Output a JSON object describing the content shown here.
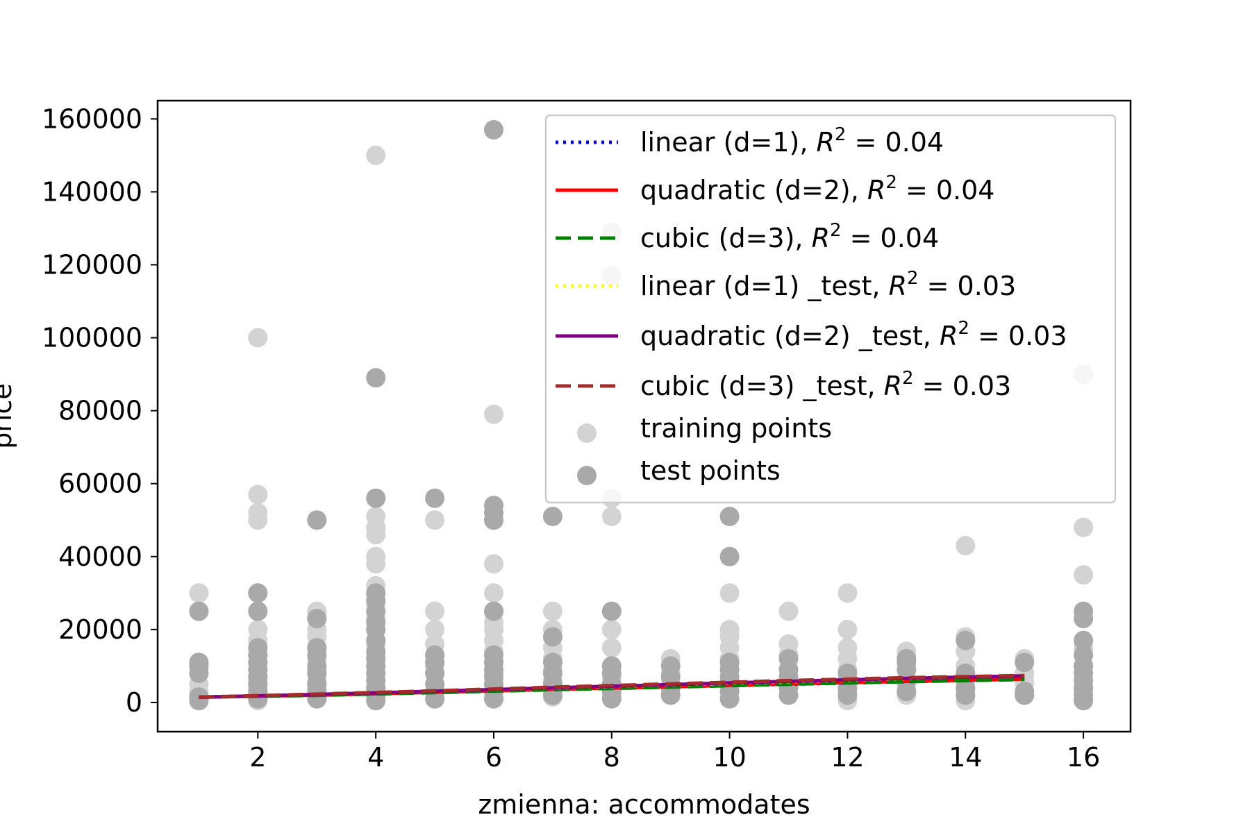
{
  "chart_data": {
    "type": "scatter",
    "xlabel": "zmienna: accommodates",
    "ylabel": "price",
    "xlim": [
      0.3,
      16.8
    ],
    "ylim": [
      -8000,
      165000
    ],
    "xticks": [
      2,
      4,
      6,
      8,
      10,
      12,
      14,
      16
    ],
    "yticks": [
      0,
      20000,
      40000,
      60000,
      80000,
      100000,
      120000,
      140000,
      160000
    ],
    "grid": false,
    "legend_position": "top-right",
    "lines": [
      {
        "name": "linear (d=1), ",
        "r2": "0.04",
        "color": "#0000ff",
        "style": "dotted",
        "x": [
          1,
          15
        ],
        "y": [
          1500,
          6400
        ]
      },
      {
        "name": "quadratic (d=2), ",
        "r2": "0.04",
        "color": "#ff0000",
        "style": "solid",
        "x": [
          1,
          3,
          5,
          7,
          9,
          11,
          13,
          15
        ],
        "y": [
          1500,
          2000,
          2800,
          3600,
          4300,
          5100,
          5800,
          6400
        ]
      },
      {
        "name": "cubic (d=3), ",
        "r2": "0.04",
        "color": "#008000",
        "style": "dashed",
        "x": [
          1,
          3,
          5,
          7,
          9,
          11,
          13,
          15
        ],
        "y": [
          1450,
          1950,
          2700,
          3500,
          4200,
          5000,
          5700,
          6300
        ]
      },
      {
        "name": "linear (d=1) _test, ",
        "r2": "0.03",
        "color": "#ffff00",
        "style": "dotted",
        "x": [
          1,
          15
        ],
        "y": [
          1400,
          7400
        ]
      },
      {
        "name": "quadratic (d=2) _test, ",
        "r2": "0.03",
        "color": "#800080",
        "style": "solid",
        "x": [
          1,
          3,
          5,
          7,
          9,
          11,
          13,
          15
        ],
        "y": [
          1400,
          2200,
          3100,
          4000,
          4900,
          5800,
          6600,
          7300
        ]
      },
      {
        "name": "cubic (d=3) _test, ",
        "r2": "0.03",
        "color": "#a52a2a",
        "style": "dashed",
        "x": [
          1,
          3,
          5,
          7,
          9,
          11,
          13,
          15
        ],
        "y": [
          1450,
          2300,
          3200,
          4200,
          5100,
          6000,
          6800,
          7400
        ]
      }
    ],
    "scatter": [
      {
        "name": "training points",
        "color": "#d3d3d3",
        "points": [
          [
            1,
            500
          ],
          [
            1,
            1500
          ],
          [
            1,
            3000
          ],
          [
            1,
            5000
          ],
          [
            1,
            8000
          ],
          [
            1,
            10000
          ],
          [
            1,
            25000
          ],
          [
            1,
            30000
          ],
          [
            2,
            500
          ],
          [
            2,
            1500
          ],
          [
            2,
            2500
          ],
          [
            2,
            4000
          ],
          [
            2,
            5500
          ],
          [
            2,
            7000
          ],
          [
            2,
            9000
          ],
          [
            2,
            11000
          ],
          [
            2,
            13000
          ],
          [
            2,
            15000
          ],
          [
            2,
            17000
          ],
          [
            2,
            20000
          ],
          [
            2,
            25000
          ],
          [
            2,
            30000
          ],
          [
            2,
            50000
          ],
          [
            2,
            52000
          ],
          [
            2,
            57000
          ],
          [
            2,
            100000
          ],
          [
            3,
            1000
          ],
          [
            3,
            2000
          ],
          [
            3,
            4000
          ],
          [
            3,
            6000
          ],
          [
            3,
            9000
          ],
          [
            3,
            12000
          ],
          [
            3,
            15000
          ],
          [
            3,
            18000
          ],
          [
            3,
            20000
          ],
          [
            3,
            25000
          ],
          [
            4,
            500
          ],
          [
            4,
            2000
          ],
          [
            4,
            4000
          ],
          [
            4,
            6000
          ],
          [
            4,
            8000
          ],
          [
            4,
            10000
          ],
          [
            4,
            13000
          ],
          [
            4,
            16000
          ],
          [
            4,
            20000
          ],
          [
            4,
            23000
          ],
          [
            4,
            27000
          ],
          [
            4,
            30000
          ],
          [
            4,
            32000
          ],
          [
            4,
            38000
          ],
          [
            4,
            40000
          ],
          [
            4,
            46000
          ],
          [
            4,
            48000
          ],
          [
            4,
            51000
          ],
          [
            4,
            150000
          ],
          [
            5,
            1000
          ],
          [
            5,
            3000
          ],
          [
            5,
            5000
          ],
          [
            5,
            8000
          ],
          [
            5,
            10000
          ],
          [
            5,
            13000
          ],
          [
            5,
            16000
          ],
          [
            5,
            20000
          ],
          [
            5,
            25000
          ],
          [
            5,
            50000
          ],
          [
            6,
            1000
          ],
          [
            6,
            3000
          ],
          [
            6,
            5000
          ],
          [
            6,
            8000
          ],
          [
            6,
            11000
          ],
          [
            6,
            14000
          ],
          [
            6,
            17000
          ],
          [
            6,
            20000
          ],
          [
            6,
            22000
          ],
          [
            6,
            25000
          ],
          [
            6,
            30000
          ],
          [
            6,
            38000
          ],
          [
            6,
            50000
          ],
          [
            6,
            79000
          ],
          [
            7,
            1500
          ],
          [
            7,
            3500
          ],
          [
            7,
            6000
          ],
          [
            7,
            9000
          ],
          [
            7,
            12000
          ],
          [
            7,
            15000
          ],
          [
            7,
            20000
          ],
          [
            7,
            25000
          ],
          [
            8,
            1500
          ],
          [
            8,
            4000
          ],
          [
            8,
            7000
          ],
          [
            8,
            10000
          ],
          [
            8,
            15000
          ],
          [
            8,
            20000
          ],
          [
            8,
            51000
          ],
          [
            8,
            56000
          ],
          [
            8,
            117000
          ],
          [
            8,
            129000
          ],
          [
            9,
            2000
          ],
          [
            9,
            5000
          ],
          [
            9,
            8000
          ],
          [
            9,
            12000
          ],
          [
            10,
            1000
          ],
          [
            10,
            3500
          ],
          [
            10,
            6000
          ],
          [
            10,
            9000
          ],
          [
            10,
            12000
          ],
          [
            10,
            15000
          ],
          [
            10,
            18000
          ],
          [
            10,
            20000
          ],
          [
            10,
            30000
          ],
          [
            11,
            2000
          ],
          [
            11,
            5000
          ],
          [
            11,
            9000
          ],
          [
            11,
            13000
          ],
          [
            11,
            16000
          ],
          [
            11,
            25000
          ],
          [
            12,
            500
          ],
          [
            12,
            3000
          ],
          [
            12,
            6000
          ],
          [
            12,
            9000
          ],
          [
            12,
            12000
          ],
          [
            12,
            15000
          ],
          [
            12,
            20000
          ],
          [
            12,
            30000
          ],
          [
            13,
            2000
          ],
          [
            13,
            5000
          ],
          [
            13,
            9000
          ],
          [
            13,
            14000
          ],
          [
            14,
            500
          ],
          [
            14,
            3000
          ],
          [
            14,
            6000
          ],
          [
            14,
            10000
          ],
          [
            14,
            14000
          ],
          [
            14,
            18000
          ],
          [
            14,
            43000
          ],
          [
            15,
            2000
          ],
          [
            15,
            5500
          ],
          [
            15,
            8000
          ],
          [
            15,
            12000
          ],
          [
            16,
            1000
          ],
          [
            16,
            3000
          ],
          [
            16,
            6000
          ],
          [
            16,
            10000
          ],
          [
            16,
            15000
          ],
          [
            16,
            35000
          ],
          [
            16,
            48000
          ],
          [
            16,
            90000
          ]
        ]
      },
      {
        "name": "test points",
        "color": "#a9a9a9",
        "points": [
          [
            1,
            500
          ],
          [
            1,
            1500
          ],
          [
            1,
            8000
          ],
          [
            1,
            10000
          ],
          [
            1,
            11000
          ],
          [
            1,
            25000
          ],
          [
            2,
            1000
          ],
          [
            2,
            3000
          ],
          [
            2,
            5000
          ],
          [
            2,
            7000
          ],
          [
            2,
            9000
          ],
          [
            2,
            11000
          ],
          [
            2,
            13000
          ],
          [
            2,
            15000
          ],
          [
            2,
            25000
          ],
          [
            2,
            30000
          ],
          [
            3,
            1000
          ],
          [
            3,
            3000
          ],
          [
            3,
            5000
          ],
          [
            3,
            8000
          ],
          [
            3,
            10000
          ],
          [
            3,
            13000
          ],
          [
            3,
            15000
          ],
          [
            3,
            23000
          ],
          [
            3,
            50000
          ],
          [
            4,
            500
          ],
          [
            4,
            2000
          ],
          [
            4,
            4000
          ],
          [
            4,
            6000
          ],
          [
            4,
            8000
          ],
          [
            4,
            10000
          ],
          [
            4,
            12000
          ],
          [
            4,
            14000
          ],
          [
            4,
            17000
          ],
          [
            4,
            20000
          ],
          [
            4,
            22000
          ],
          [
            4,
            25000
          ],
          [
            4,
            28000
          ],
          [
            4,
            30000
          ],
          [
            4,
            56000
          ],
          [
            4,
            89000
          ],
          [
            5,
            1000
          ],
          [
            5,
            3000
          ],
          [
            5,
            5000
          ],
          [
            5,
            8000
          ],
          [
            5,
            11000
          ],
          [
            5,
            13000
          ],
          [
            5,
            56000
          ],
          [
            6,
            1000
          ],
          [
            6,
            3000
          ],
          [
            6,
            5000
          ],
          [
            6,
            7000
          ],
          [
            6,
            9000
          ],
          [
            6,
            11000
          ],
          [
            6,
            13000
          ],
          [
            6,
            25000
          ],
          [
            6,
            50000
          ],
          [
            6,
            52000
          ],
          [
            6,
            54000
          ],
          [
            6,
            157000
          ],
          [
            7,
            2000
          ],
          [
            7,
            5000
          ],
          [
            7,
            8000
          ],
          [
            7,
            11000
          ],
          [
            7,
            18000
          ],
          [
            7,
            51000
          ],
          [
            8,
            1000
          ],
          [
            8,
            3000
          ],
          [
            8,
            5000
          ],
          [
            8,
            8000
          ],
          [
            8,
            10000
          ],
          [
            8,
            25000
          ],
          [
            9,
            2000
          ],
          [
            9,
            4000
          ],
          [
            9,
            7000
          ],
          [
            9,
            10000
          ],
          [
            10,
            1000
          ],
          [
            10,
            3000
          ],
          [
            10,
            5000
          ],
          [
            10,
            7000
          ],
          [
            10,
            9000
          ],
          [
            10,
            11000
          ],
          [
            10,
            40000
          ],
          [
            10,
            51000
          ],
          [
            11,
            2000
          ],
          [
            11,
            4000
          ],
          [
            11,
            7000
          ],
          [
            11,
            9000
          ],
          [
            11,
            12000
          ],
          [
            12,
            2000
          ],
          [
            12,
            4000
          ],
          [
            12,
            6000
          ],
          [
            12,
            8000
          ],
          [
            13,
            3000
          ],
          [
            13,
            6000
          ],
          [
            13,
            9000
          ],
          [
            13,
            11000
          ],
          [
            13,
            12000
          ],
          [
            14,
            2000
          ],
          [
            14,
            4000
          ],
          [
            14,
            8000
          ],
          [
            14,
            17000
          ],
          [
            15,
            2000
          ],
          [
            15,
            3000
          ],
          [
            15,
            11000
          ],
          [
            16,
            500
          ],
          [
            16,
            2000
          ],
          [
            16,
            4000
          ],
          [
            16,
            6000
          ],
          [
            16,
            8000
          ],
          [
            16,
            10000
          ],
          [
            16,
            13000
          ],
          [
            16,
            17000
          ],
          [
            16,
            23000
          ],
          [
            16,
            25000
          ]
        ]
      }
    ]
  }
}
